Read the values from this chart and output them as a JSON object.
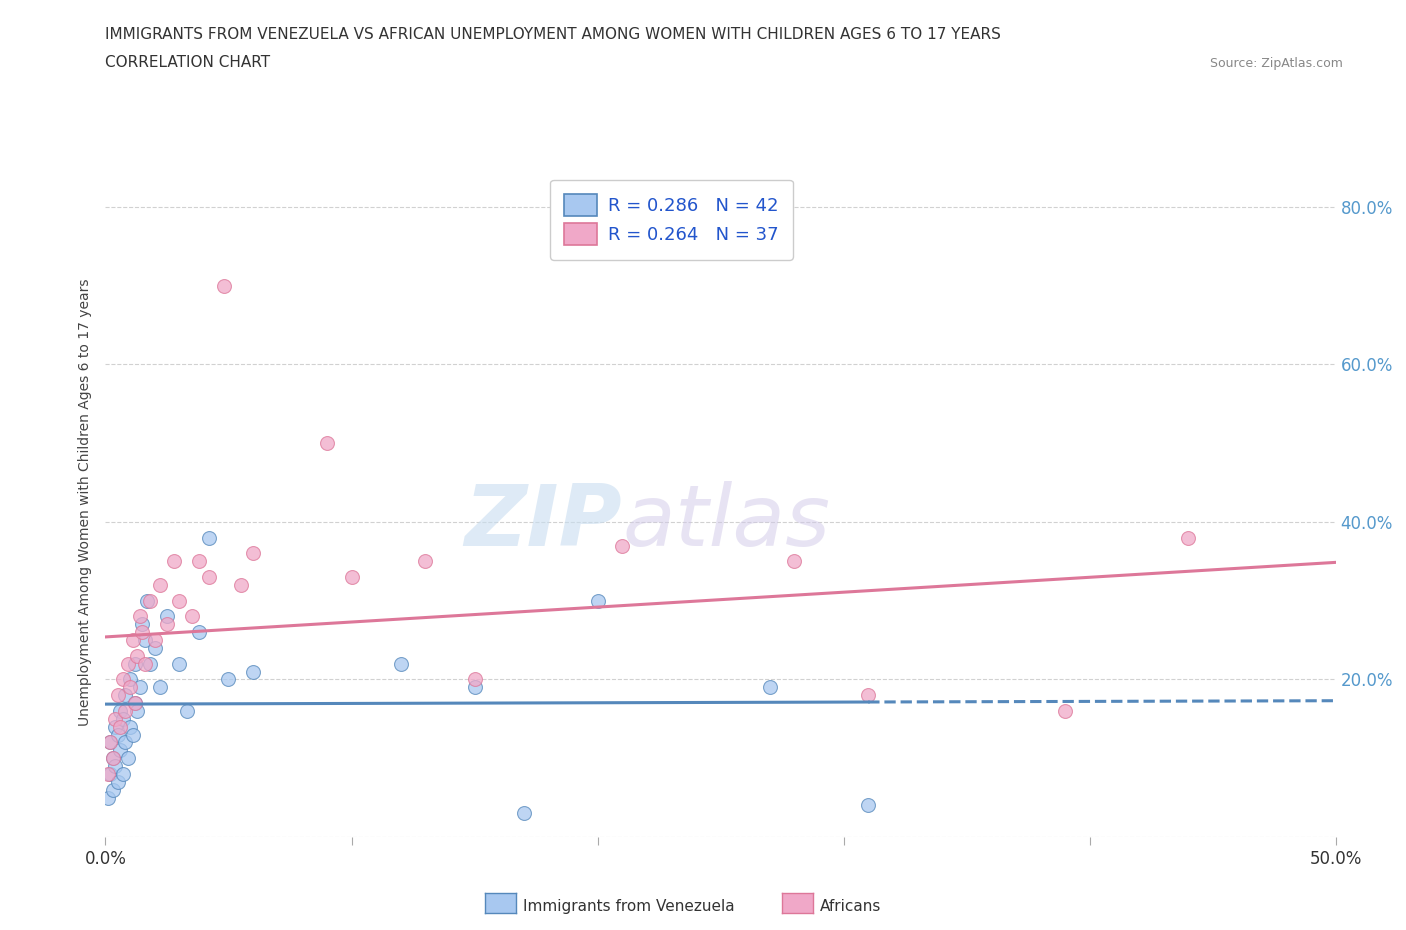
{
  "title_line1": "IMMIGRANTS FROM VENEZUELA VS AFRICAN UNEMPLOYMENT AMONG WOMEN WITH CHILDREN AGES 6 TO 17 YEARS",
  "title_line2": "CORRELATION CHART",
  "source_text": "Source: ZipAtlas.com",
  "ylabel": "Unemployment Among Women with Children Ages 6 to 17 years",
  "xlim": [
    0.0,
    0.5
  ],
  "ylim": [
    0.0,
    0.85
  ],
  "legend_r1": "R = 0.286   N = 42",
  "legend_r2": "R = 0.264   N = 37",
  "color_venezuela": "#a8c8f0",
  "color_africa": "#f0a8c8",
  "color_line_venezuela": "#5588bb",
  "color_line_africa": "#dd7799",
  "background_color": "#ffffff",
  "grid_color": "#cccccc",
  "watermark_zip": "ZIP",
  "watermark_atlas": "atlas",
  "venezuela_x": [
    0.001,
    0.002,
    0.002,
    0.003,
    0.003,
    0.004,
    0.004,
    0.005,
    0.005,
    0.006,
    0.006,
    0.007,
    0.007,
    0.008,
    0.008,
    0.009,
    0.01,
    0.01,
    0.011,
    0.012,
    0.012,
    0.013,
    0.014,
    0.015,
    0.016,
    0.017,
    0.018,
    0.02,
    0.022,
    0.025,
    0.03,
    0.033,
    0.038,
    0.042,
    0.05,
    0.06,
    0.12,
    0.15,
    0.17,
    0.2,
    0.27,
    0.31
  ],
  "venezuela_y": [
    0.05,
    0.08,
    0.12,
    0.06,
    0.1,
    0.09,
    0.14,
    0.07,
    0.13,
    0.11,
    0.16,
    0.08,
    0.15,
    0.12,
    0.18,
    0.1,
    0.14,
    0.2,
    0.13,
    0.17,
    0.22,
    0.16,
    0.19,
    0.27,
    0.25,
    0.3,
    0.22,
    0.24,
    0.19,
    0.28,
    0.22,
    0.16,
    0.26,
    0.38,
    0.2,
    0.21,
    0.22,
    0.19,
    0.03,
    0.3,
    0.19,
    0.04
  ],
  "africa_x": [
    0.001,
    0.002,
    0.003,
    0.004,
    0.005,
    0.006,
    0.007,
    0.008,
    0.009,
    0.01,
    0.011,
    0.012,
    0.013,
    0.014,
    0.015,
    0.016,
    0.018,
    0.02,
    0.022,
    0.025,
    0.028,
    0.03,
    0.035,
    0.038,
    0.042,
    0.048,
    0.055,
    0.06,
    0.09,
    0.1,
    0.13,
    0.15,
    0.21,
    0.28,
    0.31,
    0.39,
    0.44
  ],
  "africa_y": [
    0.08,
    0.12,
    0.1,
    0.15,
    0.18,
    0.14,
    0.2,
    0.16,
    0.22,
    0.19,
    0.25,
    0.17,
    0.23,
    0.28,
    0.26,
    0.22,
    0.3,
    0.25,
    0.32,
    0.27,
    0.35,
    0.3,
    0.28,
    0.35,
    0.33,
    0.7,
    0.32,
    0.36,
    0.5,
    0.33,
    0.35,
    0.2,
    0.37,
    0.35,
    0.18,
    0.16,
    0.38
  ]
}
